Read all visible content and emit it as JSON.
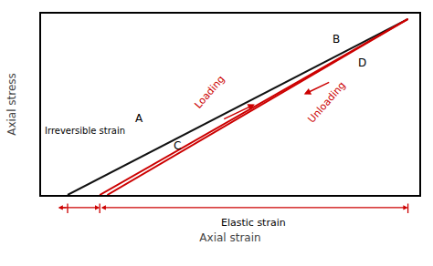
{
  "chart_data": {
    "type": "line",
    "xlabel": "Axial strain",
    "ylabel": "Axial stress",
    "xlim": [
      0,
      1
    ],
    "ylim": [
      0,
      1
    ],
    "xticks": [],
    "yticks": [],
    "tick_labels": false,
    "grid": false,
    "series": [
      {
        "color": "#111111",
        "x": [
          0.07,
          0.97
        ],
        "values": [
          0.0,
          0.97
        ]
      },
      {
        "color": "#cc0000",
        "x": [
          0.155,
          0.97
        ],
        "values": [
          0.0,
          0.97
        ]
      },
      {
        "color": "#cc0000",
        "x": [
          0.97,
          0.175
        ],
        "values": [
          0.97,
          0.0
        ]
      }
    ],
    "arrow_color": "#cc0000",
    "annotations": [
      {
        "text": "A"
      },
      {
        "text": "B"
      },
      {
        "text": "C"
      },
      {
        "text": "D"
      },
      {
        "text": "Loading",
        "color": "#cc0000"
      },
      {
        "text": "Unloading",
        "color": "#cc0000"
      },
      {
        "text": "Irreversible strain"
      },
      {
        "text": "Elastic strain"
      }
    ]
  }
}
